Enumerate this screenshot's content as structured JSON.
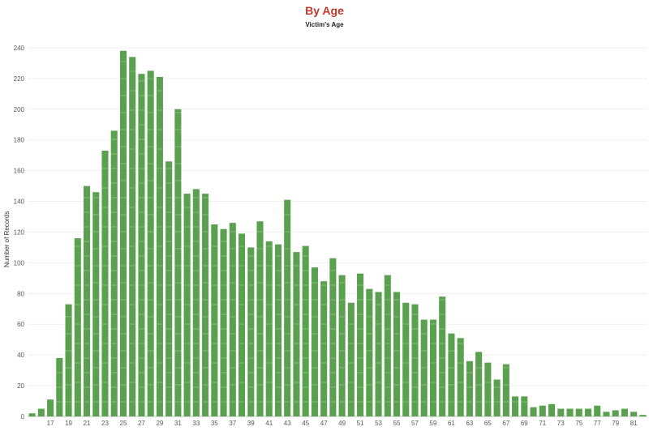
{
  "chart_data": {
    "type": "bar",
    "title": "By Age",
    "subtitle": "Victim's Age",
    "xlabel": "",
    "ylabel": "Number of Records",
    "ylim": [
      0,
      250
    ],
    "yticks": [
      0,
      20,
      40,
      60,
      80,
      100,
      120,
      140,
      160,
      180,
      200,
      220,
      240
    ],
    "grid": true,
    "color": "#5aa14f",
    "categories": [
      15,
      16,
      17,
      18,
      19,
      20,
      21,
      22,
      23,
      24,
      25,
      26,
      27,
      28,
      29,
      30,
      31,
      32,
      33,
      34,
      35,
      36,
      37,
      38,
      39,
      40,
      41,
      42,
      43,
      44,
      45,
      46,
      47,
      48,
      49,
      50,
      51,
      52,
      53,
      54,
      55,
      56,
      57,
      58,
      59,
      60,
      61,
      62,
      63,
      64,
      65,
      66,
      67,
      68,
      69,
      70,
      71,
      72,
      73,
      74,
      75,
      76,
      77,
      78,
      79,
      80,
      81,
      82
    ],
    "values": [
      2,
      5,
      11,
      38,
      73,
      116,
      150,
      146,
      173,
      186,
      238,
      234,
      223,
      225,
      221,
      166,
      200,
      145,
      148,
      145,
      125,
      122,
      126,
      119,
      110,
      127,
      114,
      112,
      141,
      107,
      111,
      97,
      88,
      103,
      92,
      74,
      93,
      83,
      81,
      92,
      81,
      74,
      73,
      63,
      63,
      78,
      54,
      51,
      36,
      42,
      35,
      24,
      34,
      13,
      13,
      6,
      7,
      8,
      5,
      5,
      5,
      5,
      7,
      3,
      4,
      5,
      3,
      1
    ],
    "x_tick_labels": [
      "17",
      "19",
      "21",
      "23",
      "25",
      "27",
      "29",
      "31",
      "33",
      "35",
      "37",
      "39",
      "41",
      "43",
      "45",
      "47",
      "49",
      "51",
      "53",
      "55",
      "57",
      "59",
      "61",
      "63",
      "65",
      "67",
      "69",
      "71",
      "73",
      "75",
      "77",
      "79",
      "81"
    ]
  }
}
